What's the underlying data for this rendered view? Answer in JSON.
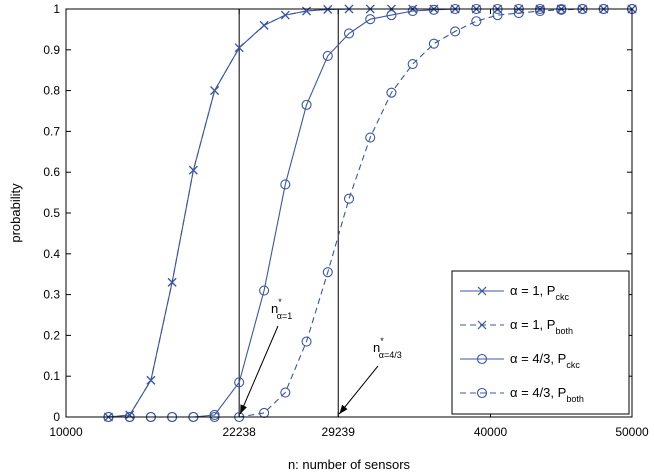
{
  "chart_data": {
    "type": "line",
    "xlabel": "n: number of sensors",
    "ylabel": "probability",
    "xlim": [
      10000,
      50000
    ],
    "ylim": [
      0,
      1
    ],
    "xticks": [
      10000,
      22238,
      29239,
      40000,
      50000
    ],
    "xtick_labels": [
      "10000",
      "22238",
      "29239",
      "40000",
      "50000"
    ],
    "yticks": [
      0,
      0.1,
      0.2,
      0.3,
      0.4,
      0.5,
      0.6,
      0.7,
      0.8,
      0.9,
      1
    ],
    "ytick_labels": [
      "0",
      "0.1",
      "0.2",
      "0.3",
      "0.4",
      "0.5",
      "0.6",
      "0.7",
      "0.8",
      "0.9",
      "1"
    ],
    "grid": false,
    "legend_position": "bottom-right",
    "color": "#3b56a3",
    "vlines": [
      22238,
      29239
    ],
    "series": [
      {
        "name": "α = 1, P",
        "name_sub": "ckc",
        "marker": "x",
        "dash": "solid",
        "x": [
          13000,
          14500,
          16000,
          17500,
          19000,
          20500,
          22238,
          24000,
          25500,
          27000,
          28500,
          30000,
          31500,
          33000,
          34500,
          36000,
          37500,
          39000,
          40500,
          42000,
          43500,
          45000,
          46500,
          48000,
          50000
        ],
        "y": [
          0,
          0.005,
          0.09,
          0.33,
          0.605,
          0.8,
          0.905,
          0.96,
          0.985,
          0.995,
          0.999,
          1,
          1,
          1,
          1,
          1,
          1,
          1,
          1,
          1,
          1,
          1,
          1,
          1,
          1
        ]
      },
      {
        "name": "α = 1, P",
        "name_sub": "both",
        "marker": "x",
        "dash": "dashed",
        "x": [
          13000,
          14500,
          16000,
          17500,
          19000,
          20500,
          22238,
          24000,
          25500,
          27000,
          28500,
          30000,
          31500,
          33000,
          34500,
          36000,
          37500,
          39000,
          40500,
          42000,
          43500,
          45000,
          46500,
          48000,
          50000
        ],
        "y": [
          0,
          0.005,
          0.09,
          0.33,
          0.605,
          0.8,
          0.905,
          0.96,
          0.985,
          0.995,
          0.999,
          1,
          1,
          1,
          1,
          1,
          1,
          1,
          1,
          1,
          1,
          1,
          1,
          1,
          1
        ]
      },
      {
        "name": "α = 4/3, P",
        "name_sub": "ckc",
        "marker": "o",
        "dash": "solid",
        "x": [
          13000,
          14500,
          16000,
          17500,
          19000,
          20500,
          22238,
          24000,
          25500,
          27000,
          28500,
          30000,
          31500,
          33000,
          34500,
          36000,
          37500,
          39000,
          40500,
          42000,
          43500,
          45000,
          46500,
          48000,
          50000
        ],
        "y": [
          0,
          0,
          0,
          0,
          0,
          0.005,
          0.085,
          0.31,
          0.57,
          0.765,
          0.885,
          0.94,
          0.975,
          0.985,
          0.995,
          0.998,
          1,
          1,
          1,
          1,
          1,
          1,
          1,
          1,
          1
        ]
      },
      {
        "name": "α = 4/3, P",
        "name_sub": "both",
        "marker": "o",
        "dash": "dashed",
        "x": [
          13000,
          14500,
          16000,
          17500,
          19000,
          20500,
          22238,
          24000,
          25500,
          27000,
          28500,
          30000,
          31500,
          33000,
          34500,
          36000,
          37500,
          39000,
          40500,
          42000,
          43500,
          45000,
          46500,
          48000,
          50000
        ],
        "y": [
          0,
          0,
          0,
          0,
          0,
          0,
          0,
          0.01,
          0.06,
          0.185,
          0.355,
          0.535,
          0.685,
          0.795,
          0.865,
          0.915,
          0.945,
          0.97,
          0.985,
          0.99,
          0.995,
          0.998,
          1,
          1,
          1
        ]
      }
    ],
    "annotations": [
      {
        "text": "n",
        "sup": "*",
        "sub": "α=1",
        "points_to": [
          22238,
          0
        ]
      },
      {
        "text": "n",
        "sup": "*",
        "sub": "α=4/3",
        "points_to": [
          29239,
          0
        ]
      }
    ]
  }
}
